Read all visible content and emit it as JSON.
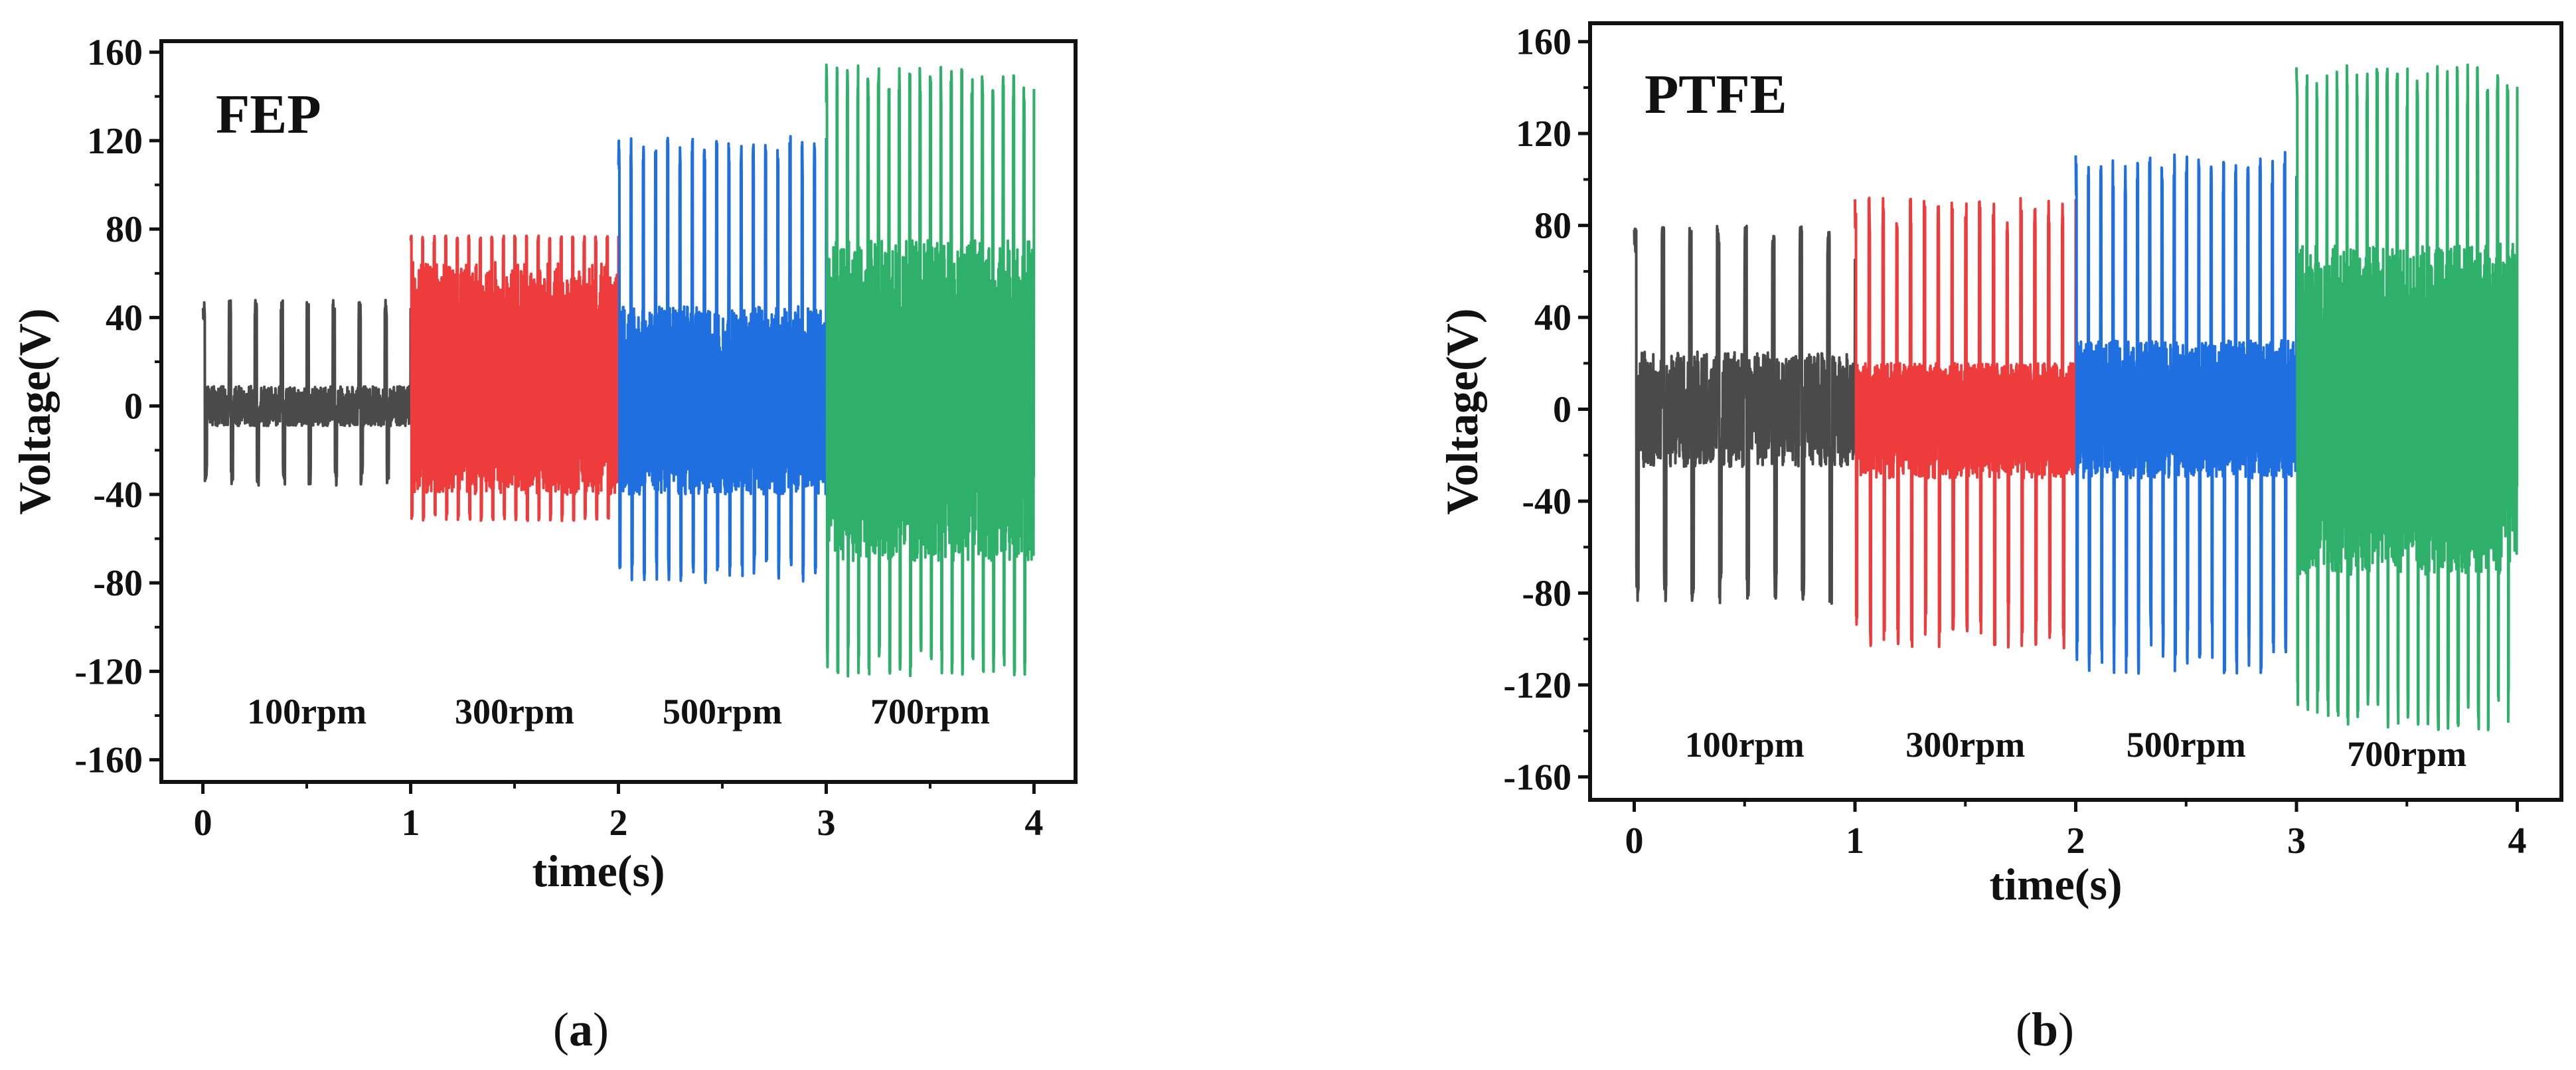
{
  "figure": {
    "caption_a": {
      "open": "(",
      "letter": "a",
      "close": ")"
    },
    "caption_b": {
      "open": "(",
      "letter": "b",
      "close": ")"
    }
  },
  "colors": {
    "100rpm": "#4a4a4a",
    "300rpm": "#ee3b3b",
    "500rpm": "#1f6fe0",
    "700rpm": "#2fb06a",
    "axes": "#111111"
  },
  "chart_data": [
    {
      "type": "line",
      "panel": "a",
      "title": "FEP",
      "xlabel": "time(s)",
      "ylabel": "Voltage(V)",
      "xlim": [
        -0.2,
        4.2
      ],
      "ylim": [
        -170,
        165
      ],
      "xticks": [
        0,
        1,
        2,
        3,
        4
      ],
      "yticks": [
        160,
        120,
        80,
        40,
        0,
        -40,
        -80,
        -120,
        -160
      ],
      "segment_labels": [
        "100rpm",
        "300rpm",
        "500rpm",
        "700rpm"
      ],
      "series": [
        {
          "name": "100rpm",
          "t_start": 0,
          "t_end": 1,
          "pulses": 8,
          "peak_max": 48,
          "peak_min": -36,
          "body_max": 10,
          "body_min": -8
        },
        {
          "name": "300rpm",
          "t_start": 1,
          "t_end": 2,
          "pulses": 18,
          "peak_max": 77,
          "peak_min": -52,
          "body_max": 65,
          "body_min": -40
        },
        {
          "name": "500rpm",
          "t_start": 2,
          "t_end": 3,
          "pulses": 17,
          "peak_max": 122,
          "peak_min": -80,
          "body_max": 45,
          "body_min": -40
        },
        {
          "name": "700rpm",
          "t_start": 3,
          "t_end": 4,
          "pulses": 20,
          "peak_max": 155,
          "peak_min": -123,
          "body_max": 75,
          "body_min": -70
        }
      ]
    },
    {
      "type": "line",
      "panel": "b",
      "title": "PTFE",
      "xlabel": "time(s)",
      "ylabel": "Voltage(V)",
      "xlim": [
        -0.2,
        4.2
      ],
      "ylim": [
        -170,
        168
      ],
      "xticks": [
        0,
        1,
        2,
        3,
        4
      ],
      "yticks": [
        160,
        120,
        80,
        40,
        0,
        -40,
        -80,
        -120,
        -160
      ],
      "segment_labels": [
        "100rpm",
        "300rpm",
        "500rpm",
        "700rpm"
      ],
      "series": [
        {
          "name": "100rpm",
          "t_start": 0,
          "t_end": 1,
          "pulses": 8,
          "peak_max": 80,
          "peak_min": -85,
          "body_max": 20,
          "body_min": -30
        },
        {
          "name": "300rpm",
          "t_start": 1,
          "t_end": 2,
          "pulses": 16,
          "peak_max": 92,
          "peak_min": -104,
          "body_max": 20,
          "body_min": -30
        },
        {
          "name": "500rpm",
          "t_start": 2,
          "t_end": 3,
          "pulses": 18,
          "peak_max": 112,
          "peak_min": -115,
          "body_max": 30,
          "body_min": -30
        },
        {
          "name": "700rpm",
          "t_start": 3,
          "t_end": 4,
          "pulses": 22,
          "peak_max": 150,
          "peak_min": -140,
          "body_max": 72,
          "body_min": -72
        }
      ]
    }
  ]
}
